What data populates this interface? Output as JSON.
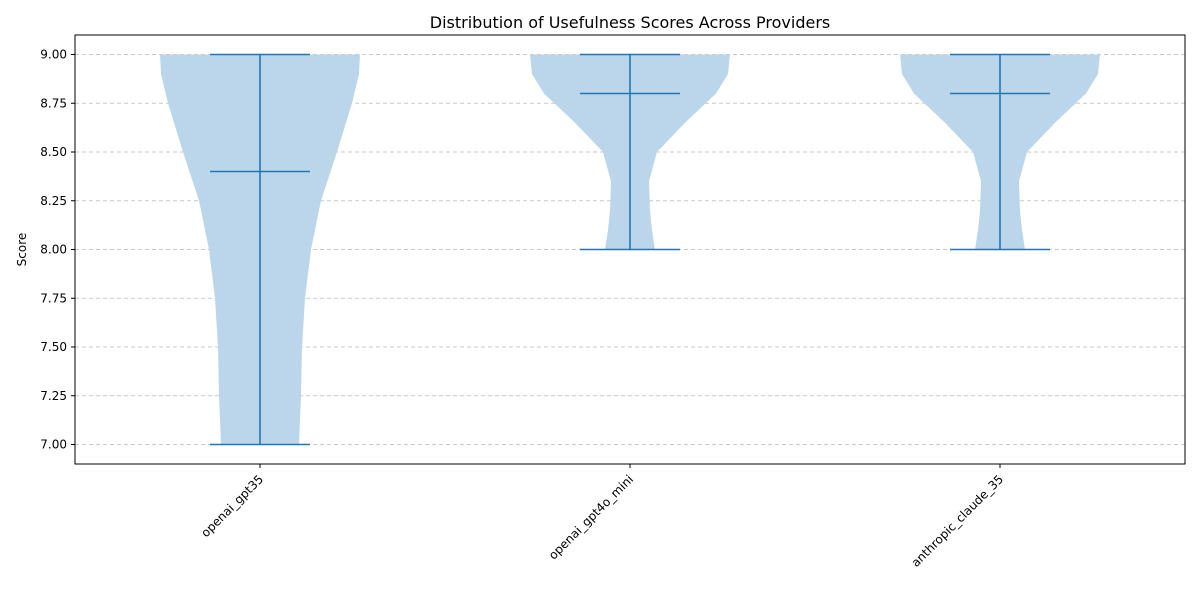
{
  "chart_data": {
    "type": "violin",
    "title": "Distribution of Usefulness Scores Across Providers",
    "xlabel": "",
    "ylabel": "Score",
    "categories": [
      "openai_gpt35",
      "openai_gpt4o_mini",
      "anthropic_claude_35"
    ],
    "ylim": [
      6.9,
      9.1
    ],
    "yticks": [
      "7.00",
      "7.25",
      "7.50",
      "7.75",
      "8.00",
      "8.25",
      "8.50",
      "8.75",
      "9.00"
    ],
    "grid": {
      "y": true,
      "x": false,
      "style": "dashed"
    },
    "colors": {
      "body": "#bbd6ea",
      "line": "#1f77b4",
      "grid": "#c8c8c8"
    },
    "violins": [
      {
        "name": "openai_gpt35",
        "min": 7.0,
        "median": 8.4,
        "max": 9.0,
        "profile": [
          [
            7.0,
            0.39
          ],
          [
            7.25,
            0.41
          ],
          [
            7.5,
            0.42
          ],
          [
            7.75,
            0.45
          ],
          [
            8.0,
            0.51
          ],
          [
            8.25,
            0.61
          ],
          [
            8.5,
            0.77
          ],
          [
            8.75,
            0.92
          ],
          [
            8.9,
            0.99
          ],
          [
            9.0,
            1.0
          ]
        ]
      },
      {
        "name": "openai_gpt4o_mini",
        "min": 8.0,
        "median": 8.8,
        "max": 9.0,
        "profile": [
          [
            8.0,
            0.25
          ],
          [
            8.1,
            0.22
          ],
          [
            8.2,
            0.2
          ],
          [
            8.35,
            0.19
          ],
          [
            8.5,
            0.27
          ],
          [
            8.65,
            0.55
          ],
          [
            8.8,
            0.86
          ],
          [
            8.9,
            0.98
          ],
          [
            9.0,
            1.0
          ]
        ]
      },
      {
        "name": "anthropic_claude_35",
        "min": 8.0,
        "median": 8.8,
        "max": 9.0,
        "profile": [
          [
            8.0,
            0.25
          ],
          [
            8.1,
            0.22
          ],
          [
            8.2,
            0.2
          ],
          [
            8.35,
            0.19
          ],
          [
            8.5,
            0.27
          ],
          [
            8.65,
            0.55
          ],
          [
            8.8,
            0.86
          ],
          [
            8.9,
            0.98
          ],
          [
            9.0,
            1.0
          ]
        ]
      }
    ]
  }
}
